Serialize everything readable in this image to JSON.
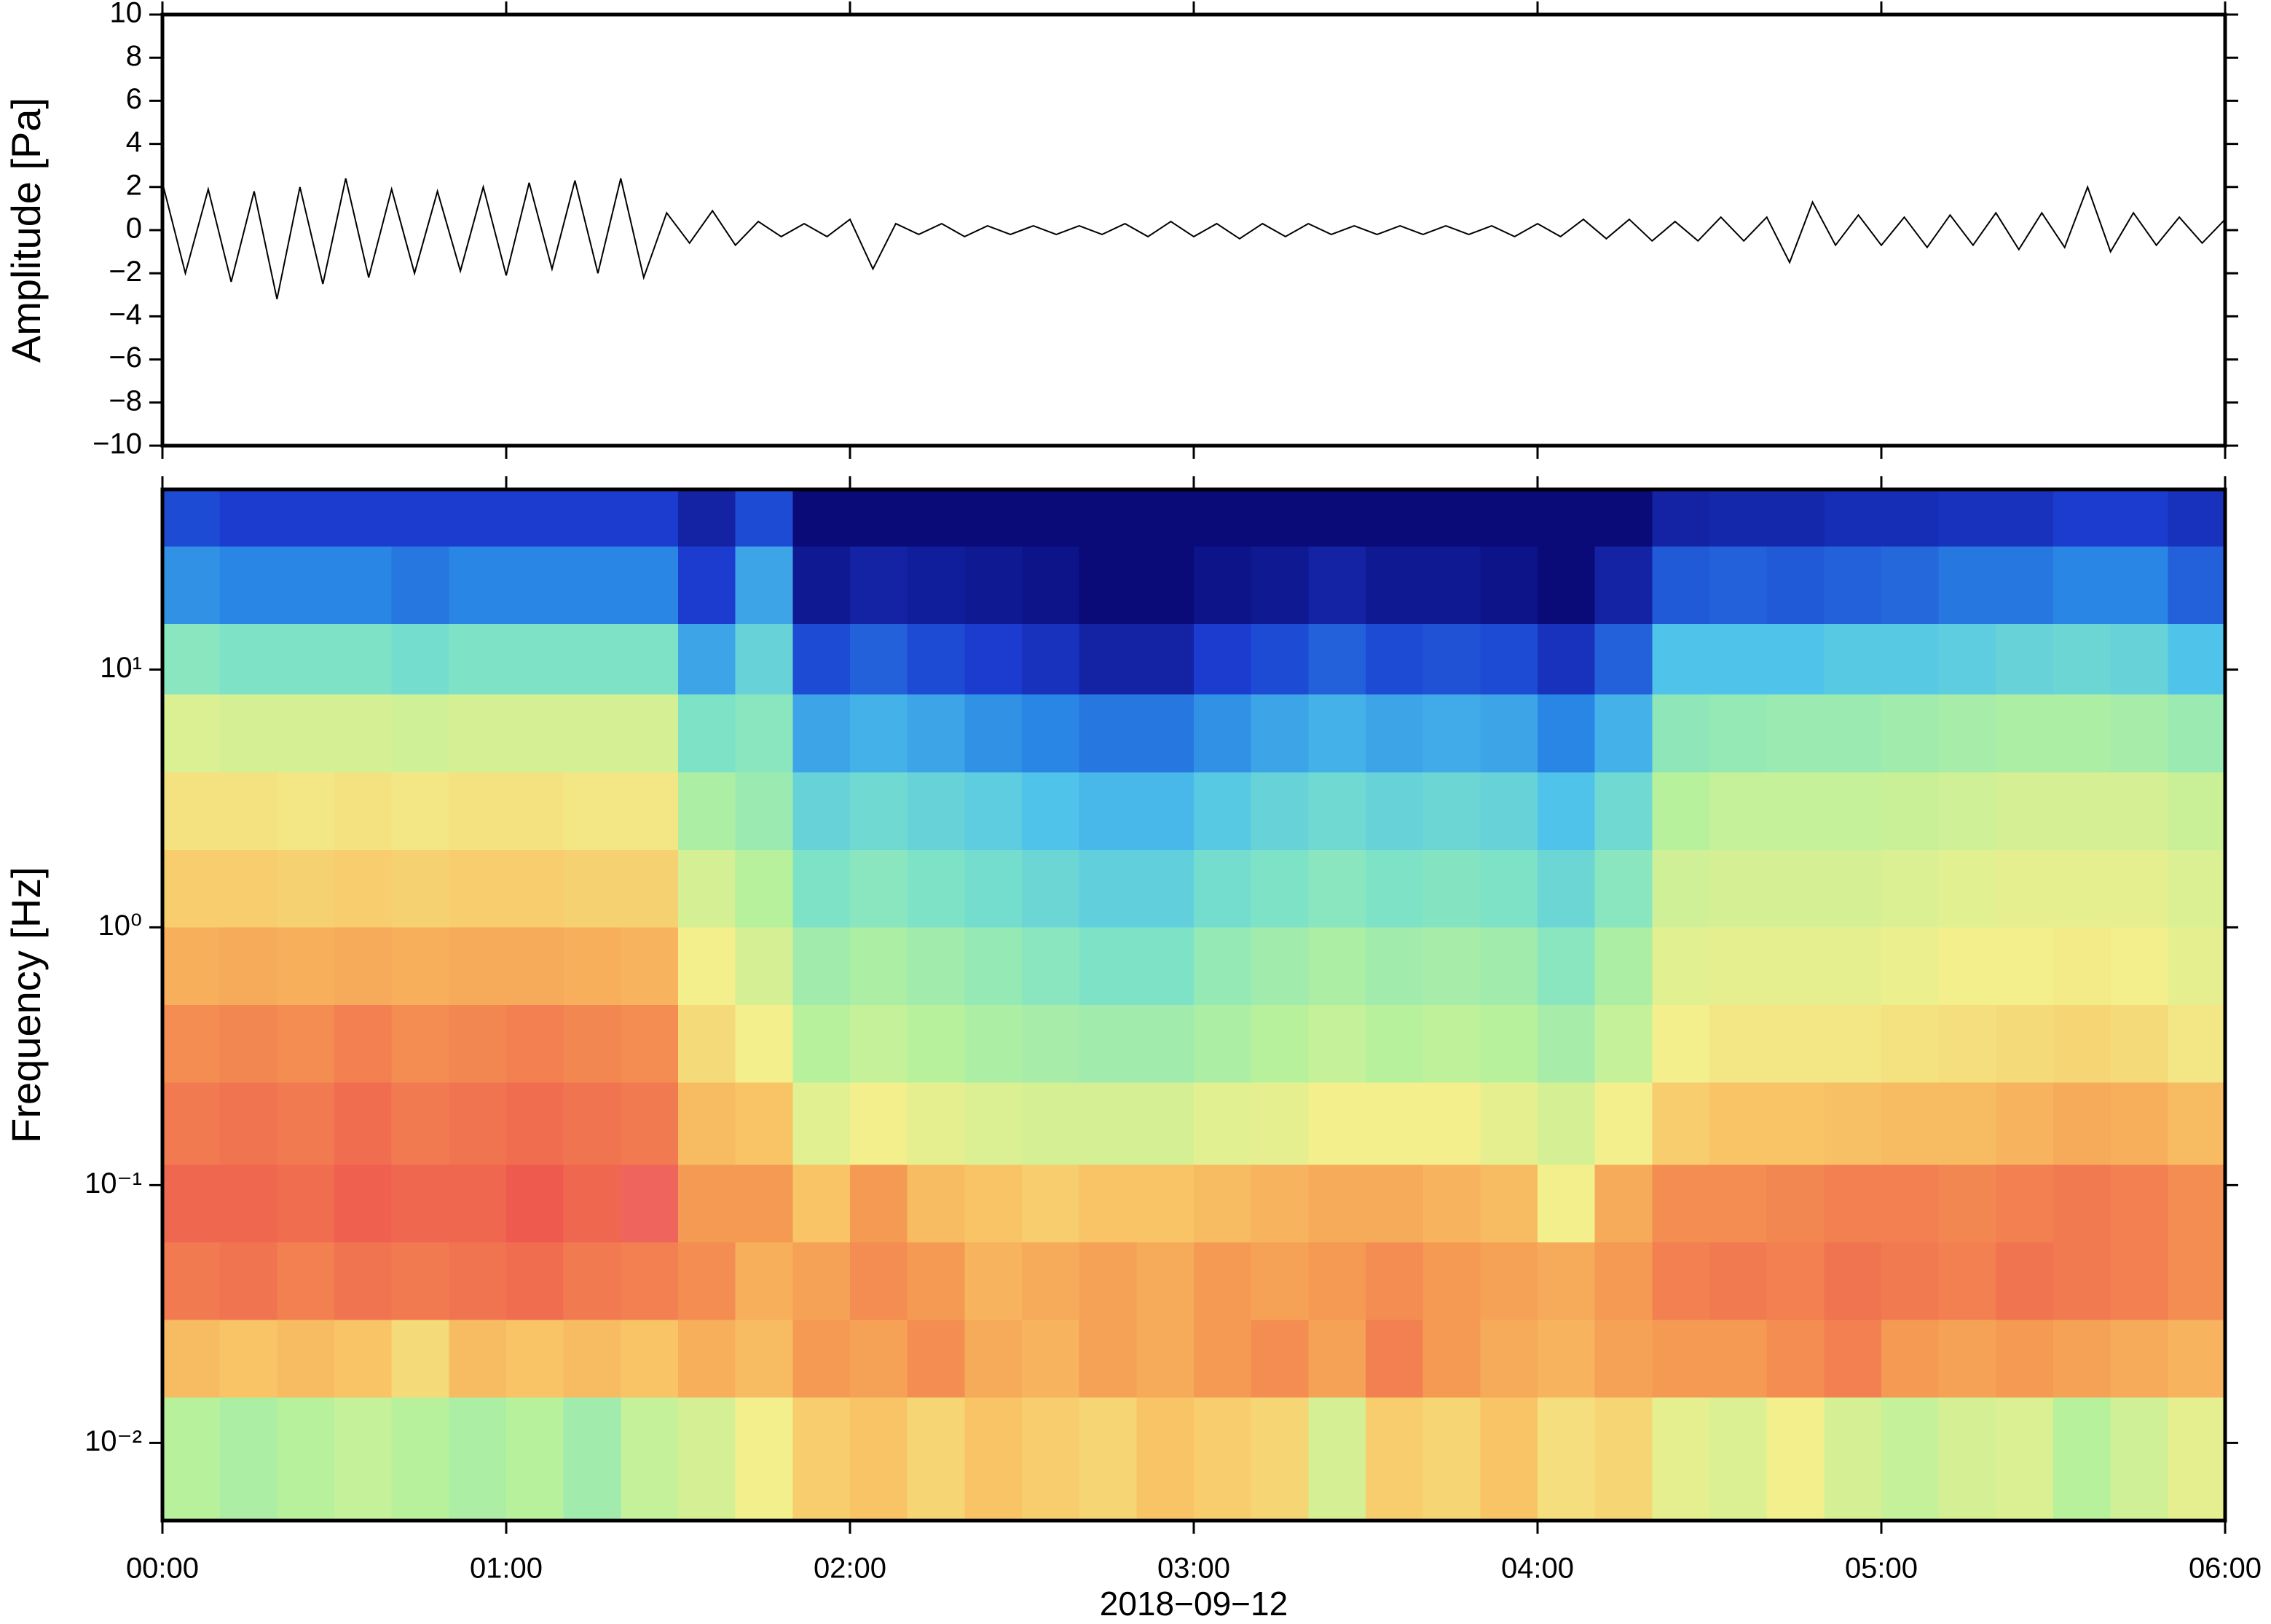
{
  "chart_data": [
    {
      "type": "line",
      "ylabel": "Amplitude [Pa]",
      "color": "#000000",
      "x": [
        0,
        4,
        8,
        12,
        16,
        20,
        24,
        28,
        32,
        36,
        40,
        44,
        48,
        52,
        56,
        60,
        64,
        68,
        72,
        76,
        80,
        84,
        88,
        92,
        96,
        100,
        104,
        108,
        112,
        116,
        120,
        124,
        128,
        132,
        136,
        140,
        144,
        148,
        152,
        156,
        160,
        164,
        168,
        172,
        176,
        180,
        184,
        188,
        192,
        196,
        200,
        204,
        208,
        212,
        216,
        220,
        224,
        228,
        232,
        236,
        240,
        244,
        248,
        252,
        256,
        260,
        264,
        268,
        272,
        276,
        280,
        284,
        288,
        292,
        296,
        300,
        304,
        308,
        312,
        316,
        320,
        324,
        328,
        332,
        336,
        340,
        344,
        348,
        352,
        356,
        360
      ],
      "values": [
        2.2,
        -2.0,
        1.9,
        -2.4,
        1.8,
        -3.2,
        2.0,
        -2.5,
        2.4,
        -2.2,
        1.9,
        -2.0,
        1.8,
        -1.9,
        2.0,
        -2.1,
        2.2,
        -1.8,
        2.3,
        -2.0,
        2.4,
        -2.2,
        0.8,
        -0.6,
        0.9,
        -0.7,
        0.4,
        -0.3,
        0.3,
        -0.3,
        0.5,
        -1.8,
        0.3,
        -0.2,
        0.3,
        -0.3,
        0.2,
        -0.2,
        0.2,
        -0.2,
        0.2,
        -0.2,
        0.3,
        -0.3,
        0.4,
        -0.3,
        0.3,
        -0.4,
        0.3,
        -0.3,
        0.3,
        -0.2,
        0.2,
        -0.2,
        0.2,
        -0.2,
        0.2,
        -0.2,
        0.2,
        -0.3,
        0.3,
        -0.3,
        0.5,
        -0.4,
        0.5,
        -0.5,
        0.4,
        -0.5,
        0.6,
        -0.5,
        0.6,
        -1.5,
        1.3,
        -0.7,
        0.7,
        -0.7,
        0.6,
        -0.8,
        0.7,
        -0.7,
        0.8,
        -0.9,
        0.8,
        -0.8,
        2.0,
        -1.0,
        0.8,
        -0.7,
        0.6,
        -0.6,
        0.5
      ],
      "xlim": [
        0,
        360
      ],
      "xticks": [
        0,
        60,
        120,
        180,
        240,
        300,
        360
      ],
      "ylim": [
        -10,
        10
      ],
      "yticks": [
        {
          "value": -10,
          "label": "−10"
        },
        {
          "value": -8,
          "label": "−8"
        },
        {
          "value": -6,
          "label": "−6"
        },
        {
          "value": -4,
          "label": "−4"
        },
        {
          "value": -2,
          "label": "−2"
        },
        0,
        2,
        4,
        6,
        8,
        10
      ]
    },
    {
      "type": "heatmap",
      "ylabel": "Frequency [Hz]",
      "xlabel": "2018−09−12",
      "log_y": true,
      "x_edges": [
        0,
        10,
        20,
        30,
        40,
        50,
        60,
        70,
        80,
        90,
        100,
        110,
        120,
        130,
        140,
        150,
        160,
        170,
        180,
        190,
        200,
        210,
        220,
        230,
        240,
        250,
        260,
        270,
        280,
        290,
        300,
        310,
        320,
        330,
        340,
        350,
        360
      ],
      "y_edges": [
        50,
        30,
        15,
        8,
        4,
        2,
        1,
        0.5,
        0.25,
        0.12,
        0.06,
        0.03,
        0.015,
        0.005
      ],
      "zlim": [
        0,
        1
      ],
      "colormap": [
        "#0a0a78",
        "#1b3ccf",
        "#2a86e4",
        "#4fc3ea",
        "#7ee3c6",
        "#b8f19c",
        "#f2ef8c",
        "#f8c466",
        "#f59a52",
        "#ef5a4f",
        "#f48a98"
      ],
      "z": [
        [
          0.12,
          0.1,
          0.1,
          0.1,
          0.1,
          0.1,
          0.1,
          0.1,
          0.1,
          0.05,
          0.12,
          0,
          0,
          0,
          0,
          0,
          0,
          0,
          0,
          0,
          0,
          0,
          0,
          0,
          0,
          0,
          0.05,
          0.06,
          0.06,
          0.07,
          0.07,
          0.08,
          0.08,
          0.1,
          0.1,
          0.08
        ],
        [
          0.22,
          0.2,
          0.2,
          0.2,
          0.18,
          0.2,
          0.2,
          0.2,
          0.2,
          0.1,
          0.25,
          0.03,
          0.05,
          0.04,
          0.03,
          0.02,
          0,
          0,
          0.02,
          0.03,
          0.05,
          0.03,
          0.03,
          0.02,
          0,
          0.05,
          0.14,
          0.15,
          0.14,
          0.15,
          0.16,
          0.18,
          0.18,
          0.2,
          0.2,
          0.15
        ],
        [
          0.42,
          0.4,
          0.4,
          0.4,
          0.38,
          0.4,
          0.4,
          0.4,
          0.4,
          0.25,
          0.35,
          0.12,
          0.15,
          0.12,
          0.1,
          0.08,
          0.05,
          0.05,
          0.1,
          0.12,
          0.15,
          0.12,
          0.13,
          0.12,
          0.08,
          0.15,
          0.3,
          0.3,
          0.3,
          0.32,
          0.32,
          0.33,
          0.35,
          0.36,
          0.35,
          0.3
        ],
        [
          0.56,
          0.55,
          0.55,
          0.55,
          0.54,
          0.55,
          0.55,
          0.55,
          0.55,
          0.4,
          0.42,
          0.25,
          0.27,
          0.25,
          0.22,
          0.2,
          0.18,
          0.18,
          0.22,
          0.25,
          0.27,
          0.25,
          0.26,
          0.25,
          0.2,
          0.27,
          0.43,
          0.44,
          0.45,
          0.45,
          0.46,
          0.47,
          0.48,
          0.48,
          0.47,
          0.45
        ],
        [
          0.63,
          0.63,
          0.62,
          0.63,
          0.62,
          0.63,
          0.63,
          0.62,
          0.62,
          0.48,
          0.45,
          0.35,
          0.37,
          0.35,
          0.33,
          0.3,
          0.28,
          0.28,
          0.32,
          0.35,
          0.37,
          0.35,
          0.36,
          0.35,
          0.3,
          0.37,
          0.5,
          0.52,
          0.52,
          0.52,
          0.53,
          0.54,
          0.55,
          0.55,
          0.55,
          0.53
        ],
        [
          0.68,
          0.68,
          0.67,
          0.68,
          0.67,
          0.68,
          0.68,
          0.67,
          0.67,
          0.55,
          0.5,
          0.4,
          0.42,
          0.4,
          0.38,
          0.36,
          0.34,
          0.34,
          0.38,
          0.4,
          0.42,
          0.4,
          0.41,
          0.4,
          0.36,
          0.42,
          0.54,
          0.55,
          0.55,
          0.55,
          0.56,
          0.57,
          0.58,
          0.58,
          0.58,
          0.56
        ],
        [
          0.75,
          0.76,
          0.75,
          0.76,
          0.75,
          0.76,
          0.76,
          0.75,
          0.74,
          0.6,
          0.55,
          0.46,
          0.48,
          0.46,
          0.44,
          0.42,
          0.4,
          0.4,
          0.44,
          0.46,
          0.48,
          0.46,
          0.47,
          0.46,
          0.42,
          0.48,
          0.57,
          0.58,
          0.58,
          0.58,
          0.59,
          0.6,
          0.6,
          0.61,
          0.6,
          0.58
        ],
        [
          0.82,
          0.83,
          0.82,
          0.84,
          0.82,
          0.83,
          0.84,
          0.83,
          0.82,
          0.65,
          0.6,
          0.5,
          0.52,
          0.5,
          0.48,
          0.47,
          0.46,
          0.46,
          0.48,
          0.5,
          0.52,
          0.5,
          0.51,
          0.5,
          0.47,
          0.52,
          0.6,
          0.62,
          0.62,
          0.62,
          0.63,
          0.64,
          0.65,
          0.66,
          0.65,
          0.62
        ],
        [
          0.85,
          0.86,
          0.85,
          0.87,
          0.85,
          0.86,
          0.87,
          0.86,
          0.85,
          0.72,
          0.7,
          0.57,
          0.6,
          0.58,
          0.56,
          0.55,
          0.55,
          0.55,
          0.57,
          0.58,
          0.6,
          0.6,
          0.6,
          0.58,
          0.55,
          0.6,
          0.68,
          0.7,
          0.7,
          0.71,
          0.72,
          0.72,
          0.74,
          0.76,
          0.75,
          0.72
        ],
        [
          0.88,
          0.88,
          0.87,
          0.89,
          0.88,
          0.88,
          0.9,
          0.88,
          0.92,
          0.8,
          0.8,
          0.7,
          0.8,
          0.72,
          0.7,
          0.68,
          0.7,
          0.7,
          0.72,
          0.74,
          0.76,
          0.76,
          0.74,
          0.72,
          0.6,
          0.76,
          0.82,
          0.82,
          0.83,
          0.84,
          0.84,
          0.83,
          0.84,
          0.85,
          0.84,
          0.82
        ],
        [
          0.85,
          0.86,
          0.84,
          0.86,
          0.85,
          0.86,
          0.87,
          0.85,
          0.84,
          0.82,
          0.75,
          0.78,
          0.82,
          0.8,
          0.74,
          0.76,
          0.78,
          0.76,
          0.8,
          0.78,
          0.8,
          0.82,
          0.8,
          0.78,
          0.76,
          0.8,
          0.84,
          0.85,
          0.84,
          0.86,
          0.85,
          0.84,
          0.86,
          0.85,
          0.84,
          0.82
        ],
        [
          0.72,
          0.7,
          0.72,
          0.7,
          0.65,
          0.72,
          0.7,
          0.72,
          0.7,
          0.75,
          0.72,
          0.8,
          0.78,
          0.82,
          0.76,
          0.74,
          0.78,
          0.76,
          0.8,
          0.82,
          0.78,
          0.84,
          0.8,
          0.76,
          0.74,
          0.78,
          0.8,
          0.8,
          0.82,
          0.84,
          0.8,
          0.78,
          0.8,
          0.78,
          0.76,
          0.74
        ],
        [
          0.5,
          0.48,
          0.5,
          0.52,
          0.5,
          0.48,
          0.5,
          0.46,
          0.52,
          0.55,
          0.6,
          0.68,
          0.7,
          0.66,
          0.7,
          0.68,
          0.66,
          0.7,
          0.68,
          0.66,
          0.55,
          0.68,
          0.66,
          0.7,
          0.64,
          0.66,
          0.58,
          0.56,
          0.6,
          0.55,
          0.52,
          0.55,
          0.56,
          0.5,
          0.54,
          0.58
        ]
      ],
      "xlim": [
        0,
        360
      ],
      "xticks": [
        {
          "value": 0,
          "label": "00:00"
        },
        {
          "value": 60,
          "label": "01:00"
        },
        {
          "value": 120,
          "label": "02:00"
        },
        {
          "value": 180,
          "label": "03:00"
        },
        {
          "value": 240,
          "label": "04:00"
        },
        {
          "value": 300,
          "label": "05:00"
        },
        {
          "value": 360,
          "label": "06:00"
        }
      ],
      "ylim": [
        0.005,
        50
      ],
      "yticks": [
        {
          "value": 0.01,
          "label": "10⁻²"
        },
        {
          "value": 0.1,
          "label": "10⁻¹"
        },
        {
          "value": 1,
          "label": "10⁰"
        },
        {
          "value": 10,
          "label": "10¹"
        }
      ]
    }
  ]
}
